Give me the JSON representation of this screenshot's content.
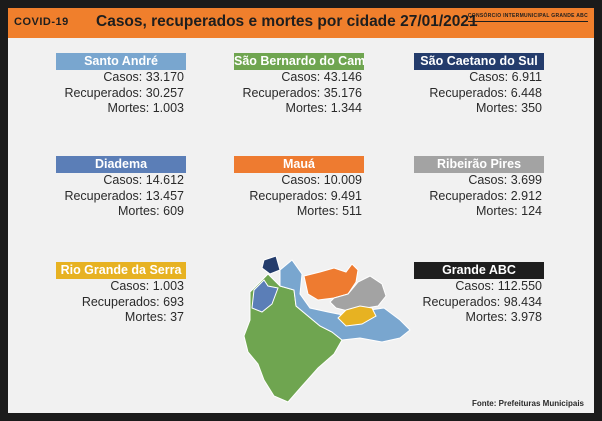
{
  "header": {
    "tag": "COVID-19",
    "title": "Casos, recuperados e mortes por cidade 27/01/2021",
    "consortium": "CONSÓRCIO INTERMUNICIPAL GRANDE ABC"
  },
  "labels": {
    "casos": "Casos:",
    "recuperados": "Recuperados:",
    "mortes": "Mortes:"
  },
  "cities": [
    {
      "name": "Santo André",
      "color": "#79a6cf",
      "casos": "33.170",
      "recuperados": "30.257",
      "mortes": "1.003"
    },
    {
      "name": "São Bernardo do Campo",
      "color": "#6fa550",
      "casos": "43.146",
      "recuperados": "35.176",
      "mortes": "1.344"
    },
    {
      "name": "São Caetano do Sul",
      "color": "#243c6c",
      "casos": "6.911",
      "recuperados": "6.448",
      "mortes": "350"
    },
    {
      "name": "Diadema",
      "color": "#5b7eb7",
      "casos": "14.612",
      "recuperados": "13.457",
      "mortes": "609"
    },
    {
      "name": "Mauá",
      "color": "#ee7b30",
      "casos": "10.009",
      "recuperados": "9.491",
      "mortes": "511"
    },
    {
      "name": "Ribeirão Pires",
      "color": "#a3a3a3",
      "casos": "3.699",
      "recuperados": "2.912",
      "mortes": "124"
    },
    {
      "name": "Rio Grande da Serra",
      "color": "#e7b222",
      "casos": "1.003",
      "recuperados": "693",
      "mortes": "37"
    },
    {
      "name": "Grande ABC",
      "color": "#1e1e1e",
      "casos": "112.550",
      "recuperados": "98.434",
      "mortes": "3.978"
    }
  ],
  "source": "Fonte: Prefeituras Municipais"
}
